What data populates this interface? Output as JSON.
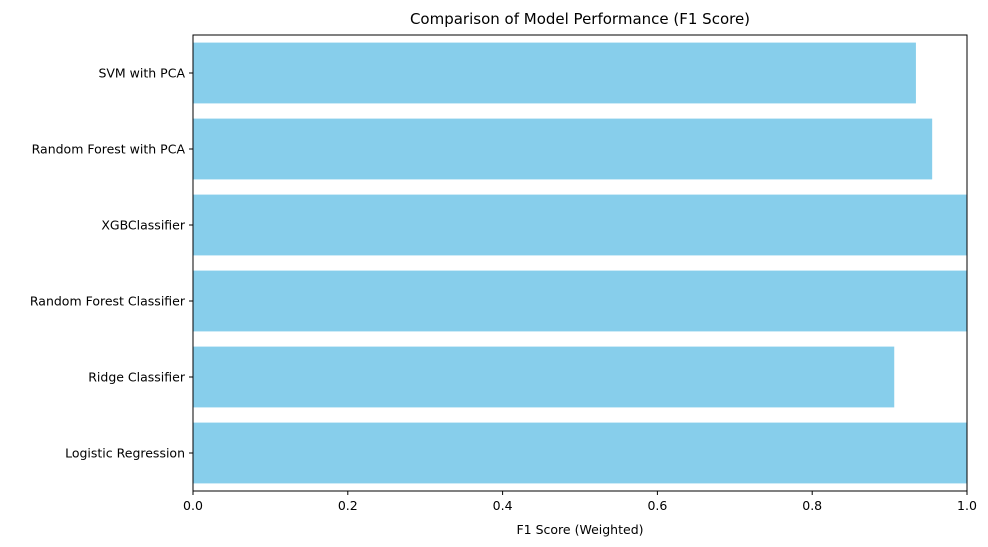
{
  "chart_data": {
    "type": "bar",
    "orientation": "horizontal",
    "title": "Comparison of Model Performance (F1 Score)",
    "xlabel": "F1 Score (Weighted)",
    "ylabel": "",
    "categories": [
      "Logistic Regression",
      "Ridge Classifier",
      "Random Forest Classifier",
      "XGBClassifier",
      "Random Forest with PCA",
      "SVM with PCA"
    ],
    "values": [
      1.0,
      0.906,
      1.0,
      1.0,
      0.955,
      0.934
    ],
    "xlim": [
      0.0,
      1.0
    ],
    "xticks": [
      "0.0",
      "0.2",
      "0.4",
      "0.6",
      "0.8",
      "1.0"
    ],
    "bar_color": "#87CEEB",
    "grid": false
  }
}
